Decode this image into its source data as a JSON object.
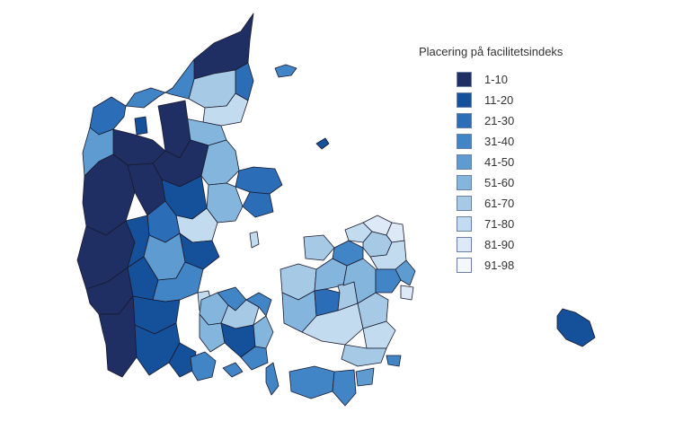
{
  "legend": {
    "title": "Placering på facilitetsindeks",
    "items": [
      {
        "label": "1-10",
        "color": "#1f2f63"
      },
      {
        "label": "11-20",
        "color": "#15509a"
      },
      {
        "label": "21-30",
        "color": "#2b6db7"
      },
      {
        "label": "31-40",
        "color": "#4185c6"
      },
      {
        "label": "41-50",
        "color": "#5d9bd1"
      },
      {
        "label": "51-60",
        "color": "#84b5dc"
      },
      {
        "label": "61-70",
        "color": "#a6c9e6"
      },
      {
        "label": "71-80",
        "color": "#c3dbef"
      },
      {
        "label": "81-90",
        "color": "#dde9f6"
      },
      {
        "label": "91-98",
        "color": "#f4f8fc"
      }
    ]
  }
}
